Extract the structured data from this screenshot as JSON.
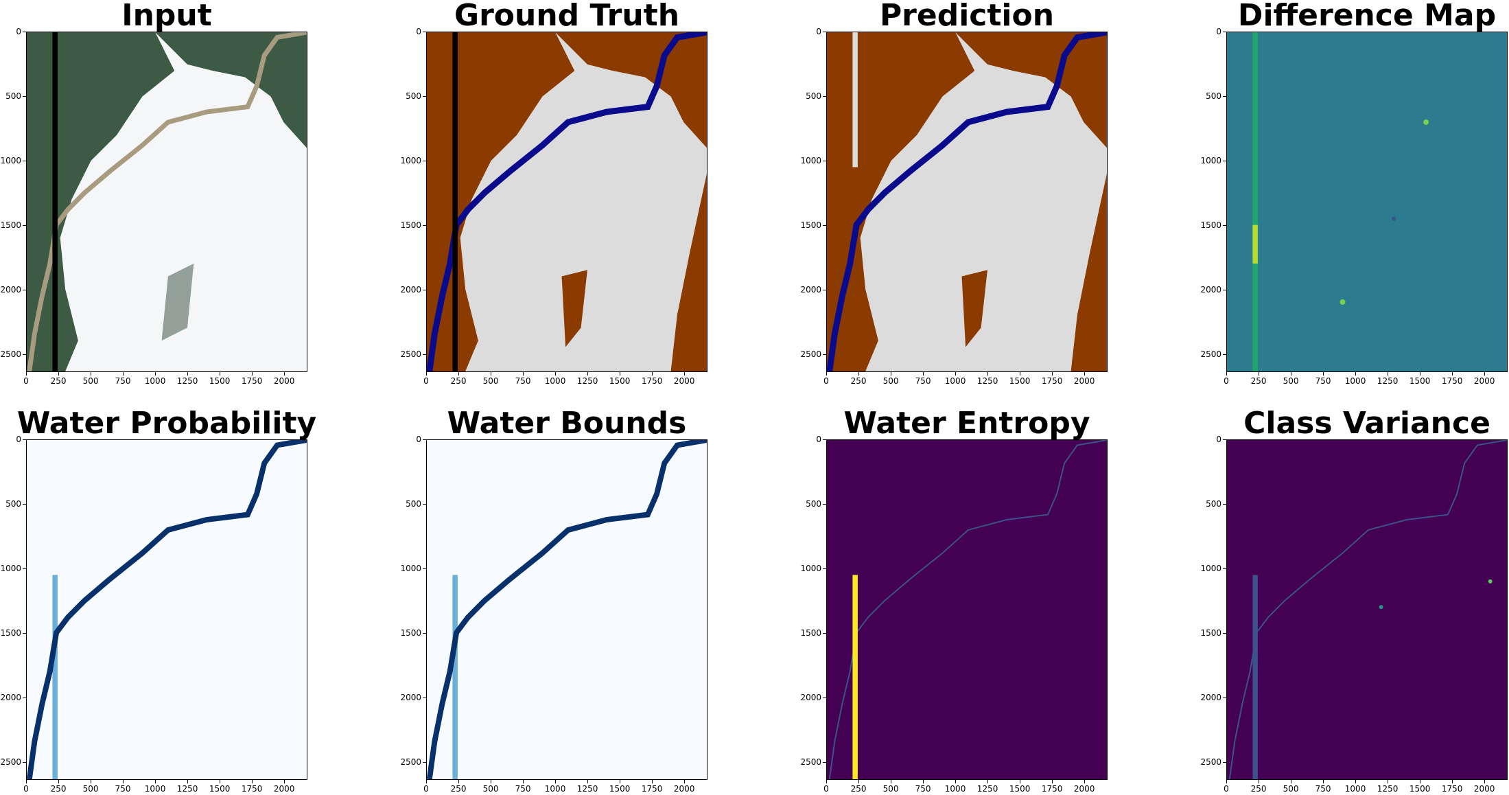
{
  "panels": [
    {
      "title": "Input",
      "style": "input"
    },
    {
      "title": "Ground Truth",
      "style": "gt"
    },
    {
      "title": "Prediction",
      "style": "pred"
    },
    {
      "title": "Difference Map",
      "style": "diff"
    },
    {
      "title": "Water Probability",
      "style": "prob"
    },
    {
      "title": "Water Bounds",
      "style": "bounds"
    },
    {
      "title": "Water Entropy",
      "style": "entropy"
    },
    {
      "title": "Class Variance",
      "style": "variance"
    }
  ],
  "axes": {
    "x_ticks": [
      "0",
      "250",
      "500",
      "750",
      "1000",
      "1250",
      "1500",
      "1750",
      "2000"
    ],
    "x_values": [
      0,
      250,
      500,
      750,
      1000,
      1250,
      1500,
      1750,
      2000
    ],
    "y_ticks": [
      "0",
      "500",
      "1000",
      "1500",
      "2000",
      "2500"
    ],
    "y_values": [
      0,
      500,
      1000,
      1500,
      2000,
      2500
    ],
    "xlim": [
      0,
      2180
    ],
    "ylim": [
      2640,
      0
    ]
  },
  "colors": {
    "land": "#8b3a00",
    "cloud": "#dcdcdc",
    "water": "#0a0a8c",
    "nodata": "#000000",
    "satellite_forest": "#3c5a44",
    "satellite_cloud": "#f4f6f8",
    "satellite_river": "#a89c80",
    "blues_bg": "#f7fbff",
    "blues_dark": "#08306b",
    "blues_mid": "#6baed6",
    "viridis_dark": "#440154",
    "viridis_teal": "#2c7b8e",
    "viridis_green": "#21a66b",
    "viridis_yellow": "#fde725"
  }
}
